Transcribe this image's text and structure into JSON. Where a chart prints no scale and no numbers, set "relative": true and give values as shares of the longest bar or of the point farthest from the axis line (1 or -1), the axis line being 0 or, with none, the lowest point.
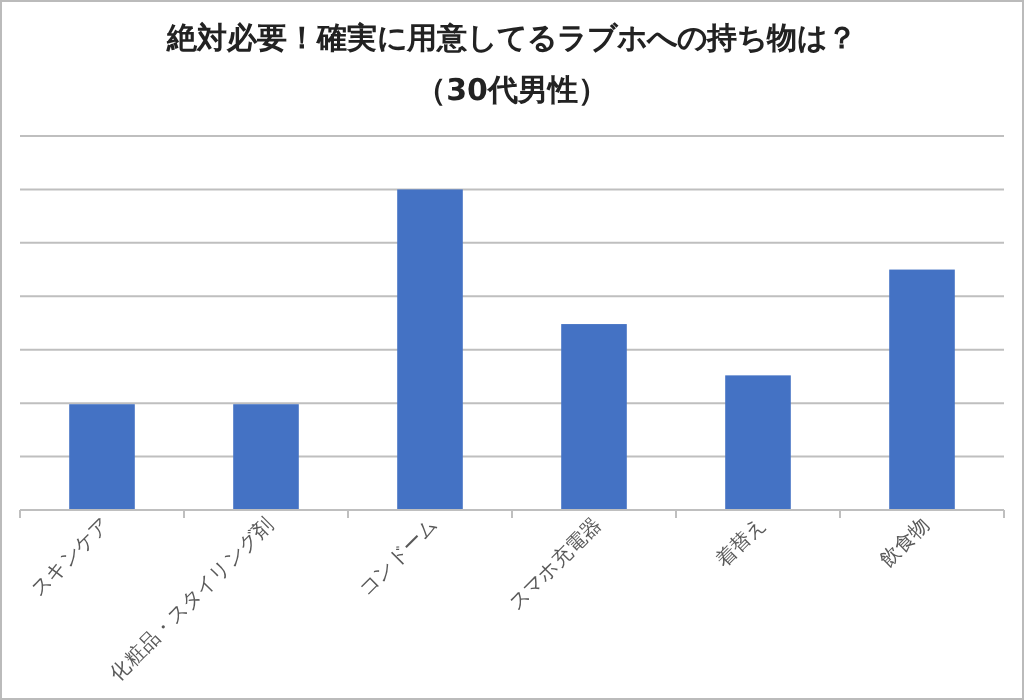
{
  "chart_data": {
    "type": "bar",
    "title": "絶対必要！確実に用意してるラブホへの持ち物は？",
    "subtitle": "（30代男性）",
    "categories": [
      "スキンケア",
      "化粧品・スタイリング剤",
      "コンドーム",
      "スマホ充電器",
      "着替え",
      "飲食物"
    ],
    "values": [
      0.33,
      0.33,
      1,
      0.58,
      0.42,
      0.75
    ],
    "color": "#4472c4",
    "relative": true,
    "grid": "y"
  }
}
